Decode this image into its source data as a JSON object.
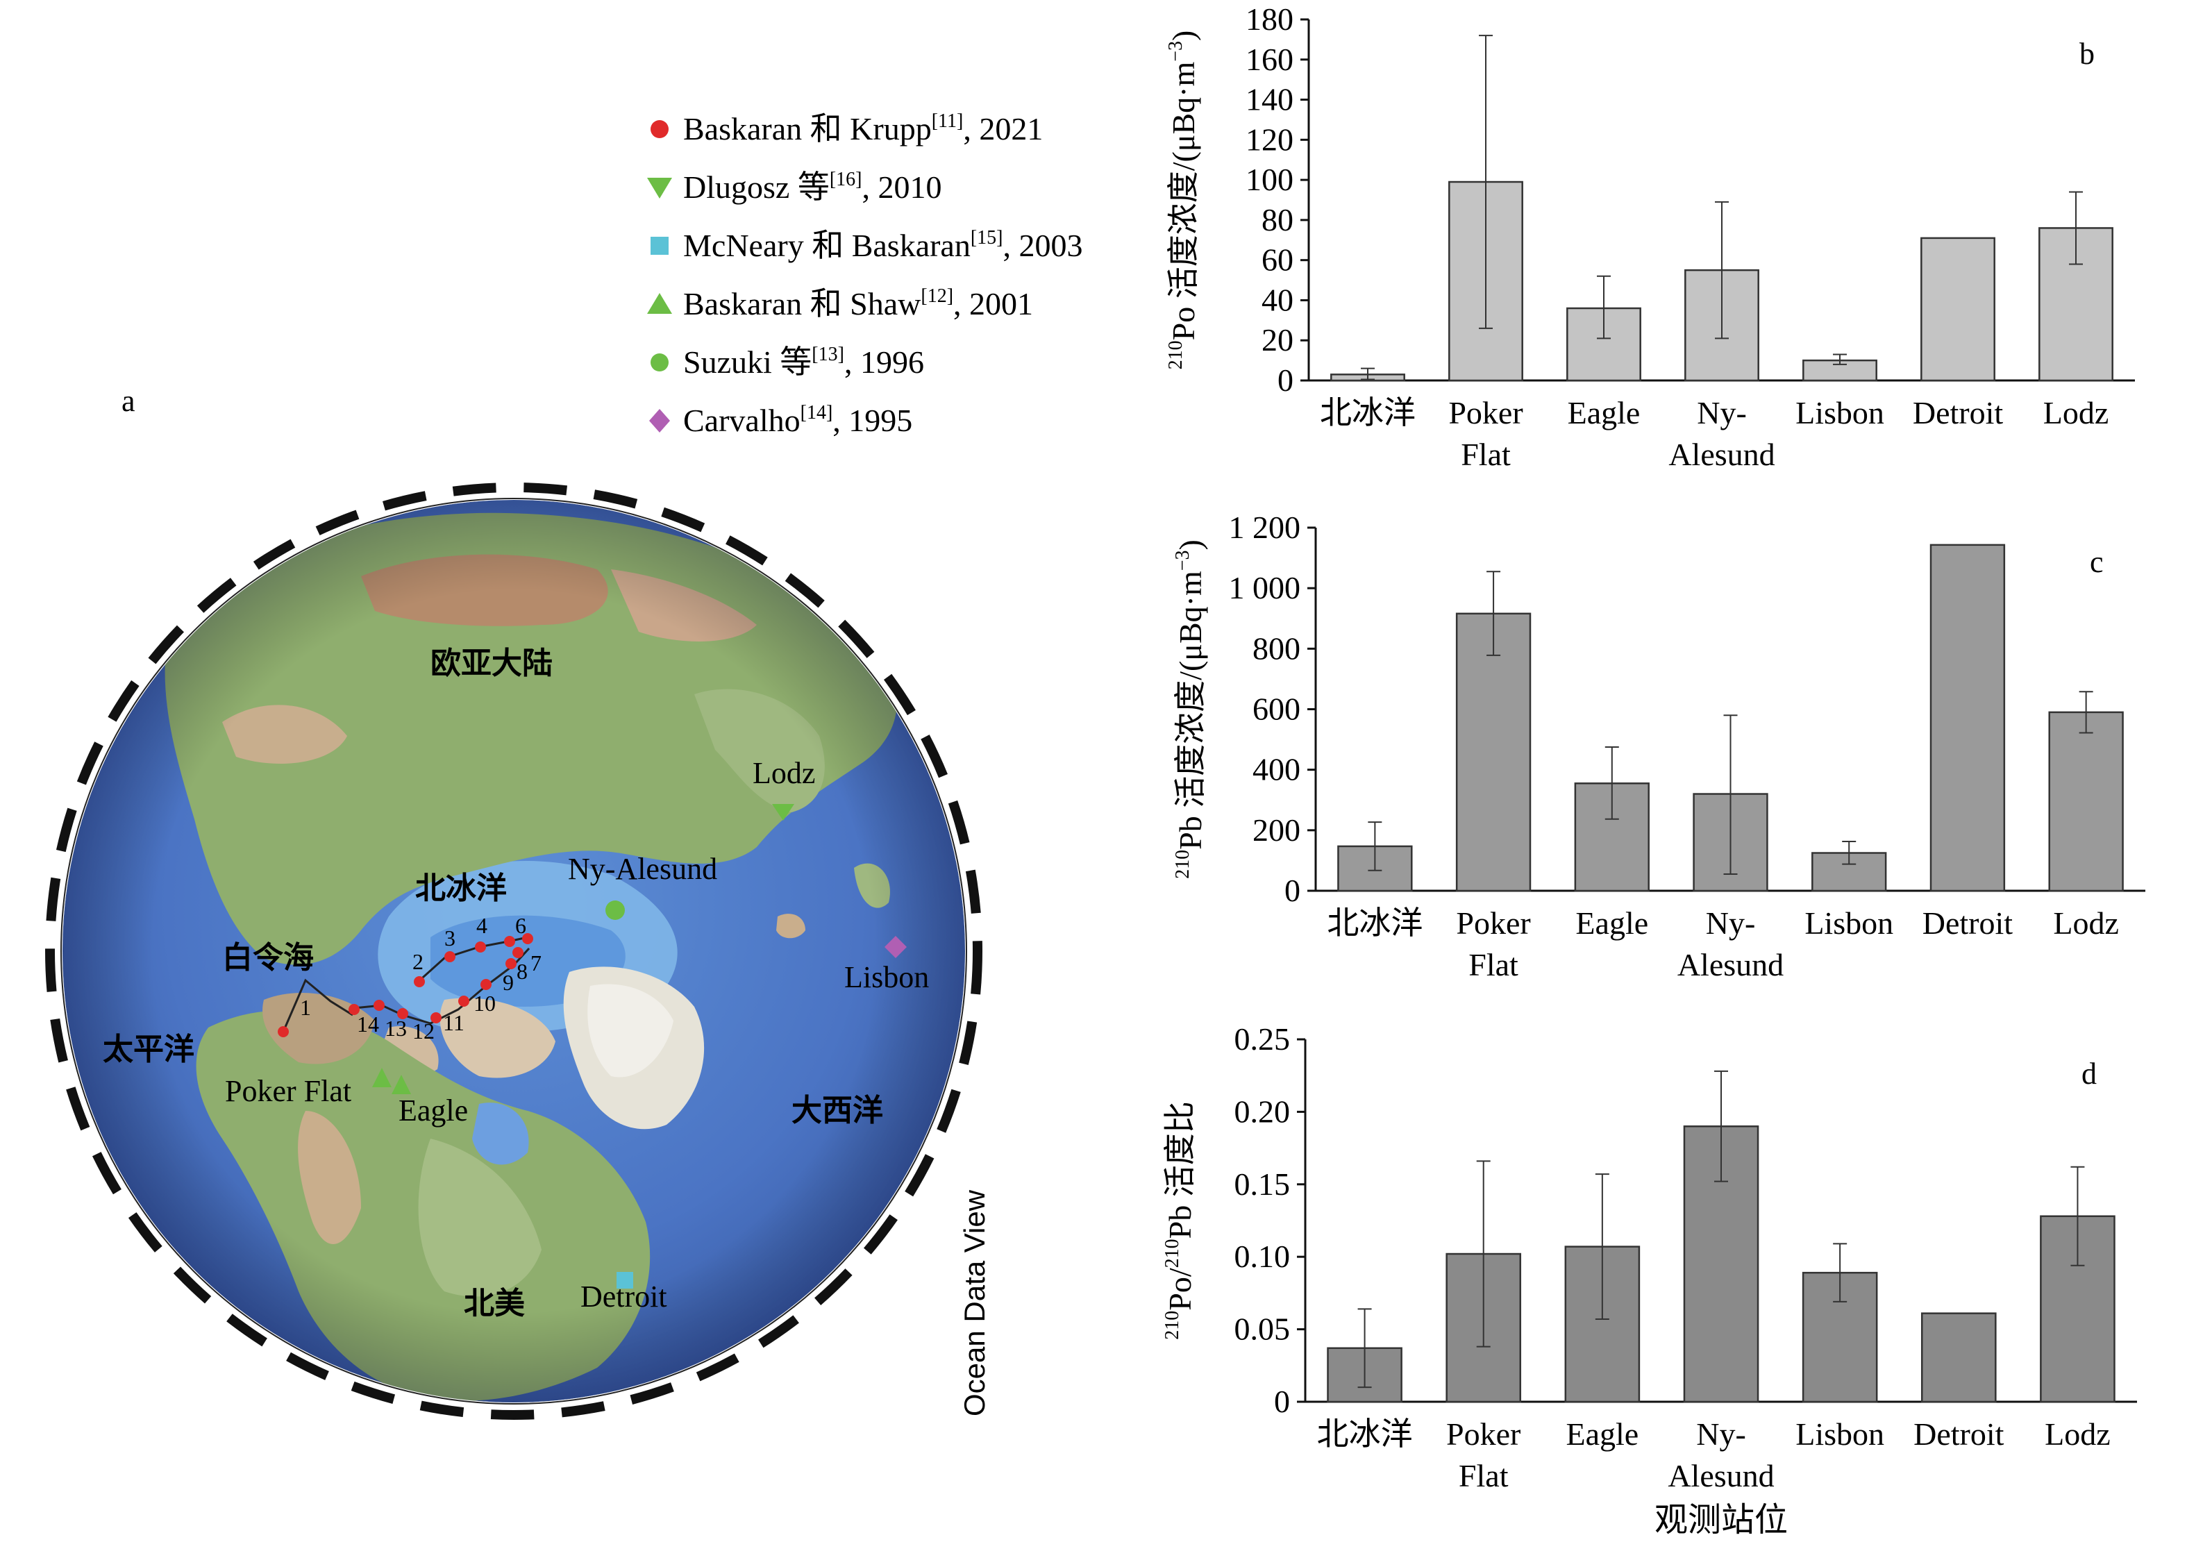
{
  "legend": {
    "items": [
      {
        "marker": "circle",
        "color": "#e02a2a",
        "main": "Baskaran 和 Krupp",
        "ref": "[11]",
        "year": ", 2021"
      },
      {
        "marker": "triangle-down",
        "color": "#6cbd45",
        "main": "Dlugosz 等",
        "ref": "[16]",
        "year": ", 2010"
      },
      {
        "marker": "square",
        "color": "#5bc2d6",
        "main": "McNeary 和 Baskaran",
        "ref": "[15]",
        "year": ", 2003"
      },
      {
        "marker": "triangle-up",
        "color": "#6cbd45",
        "main": "Baskaran 和 Shaw",
        "ref": "[12]",
        "year": ", 2001"
      },
      {
        "marker": "circle",
        "color": "#6cbd45",
        "main": "Suzuki 等",
        "ref": "[13]",
        "year": ", 1996"
      },
      {
        "marker": "diamond",
        "color": "#b05fb3",
        "main": "Carvalho",
        "ref": "[14]",
        "year": ", 1995"
      }
    ]
  },
  "map": {
    "panel_letter": "a",
    "credit": "Ocean Data View",
    "regions": {
      "eurasia": "欧亚大陆",
      "arctic": "北冰洋",
      "bering": "白令海",
      "pacific": "太平洋",
      "atlantic": "大西洋",
      "north_america": "北美"
    },
    "stations": {
      "lodz": "Lodz",
      "ny_alesund": "Ny-Alesund",
      "lisbon": "Lisbon",
      "poker_flat": "Poker Flat",
      "eagle": "Eagle",
      "detroit": "Detroit"
    },
    "cruise_points": [
      "1",
      "2",
      "3",
      "4",
      "6",
      "7",
      "8",
      "9",
      "10",
      "11",
      "12",
      "13",
      "14"
    ]
  },
  "chart_data": [
    {
      "panel": "b",
      "type": "bar",
      "categories": [
        "北冰洋",
        "Poker\nFlat",
        "Eagle",
        "Ny-\nAlesund",
        "Lisbon",
        "Detroit",
        "Lodz"
      ],
      "values": [
        3,
        99,
        36,
        55,
        10,
        71,
        76
      ],
      "error_low": [
        0.5,
        26,
        21,
        21,
        8,
        null,
        58
      ],
      "error_high": [
        6,
        172,
        52,
        89,
        13,
        null,
        94
      ],
      "ylabel_iso": "210",
      "ylabel": "Po 活度浓度/(μBq·m",
      "ylabel_exp": "−3",
      "ylabel_tail": ")",
      "ylim": [
        0,
        180
      ],
      "yticks": [
        "0",
        "20",
        "40",
        "60",
        "80",
        "100",
        "120",
        "140",
        "160",
        "180"
      ],
      "bar_color": "#c4c4c4"
    },
    {
      "panel": "c",
      "type": "bar",
      "categories": [
        "北冰洋",
        "Poker\nFlat",
        "Eagle",
        "Ny-\nAlesund",
        "Lisbon",
        "Detroit",
        "Lodz"
      ],
      "values": [
        147,
        916,
        355,
        320,
        125,
        1143,
        590
      ],
      "error_low": [
        67,
        778,
        237,
        55,
        88,
        null,
        522
      ],
      "error_high": [
        227,
        1055,
        475,
        580,
        163,
        null,
        658
      ],
      "ylabel_iso": "210",
      "ylabel": "Pb 活度浓度/(μBq·m",
      "ylabel_exp": "−3",
      "ylabel_tail": ")",
      "ylim": [
        0,
        1200
      ],
      "yticks": [
        "0",
        "200",
        "400",
        "600",
        "800",
        "1 000",
        "1 200"
      ],
      "bar_color": "#9a9a9a"
    },
    {
      "panel": "d",
      "type": "bar",
      "categories": [
        "北冰洋",
        "Poker\nFlat",
        "Eagle",
        "Ny-\nAlesund",
        "Lisbon",
        "Detroit",
        "Lodz"
      ],
      "values": [
        0.037,
        0.102,
        0.107,
        0.19,
        0.089,
        0.061,
        0.128
      ],
      "error_low": [
        0.01,
        0.038,
        0.057,
        0.152,
        0.069,
        null,
        0.094
      ],
      "error_high": [
        0.064,
        0.166,
        0.157,
        0.228,
        0.109,
        null,
        0.162
      ],
      "ylabel_iso": "210",
      "ylabel": "Po/",
      "ylabel_iso2": "210",
      "ylabel_tail2": "Pb 活度比",
      "xlabel": "观测站位",
      "ylim": [
        0,
        0.25
      ],
      "yticks": [
        "0",
        "0.05",
        "0.10",
        "0.15",
        "0.20",
        "0.25"
      ],
      "bar_color": "#8a8a8a"
    }
  ]
}
